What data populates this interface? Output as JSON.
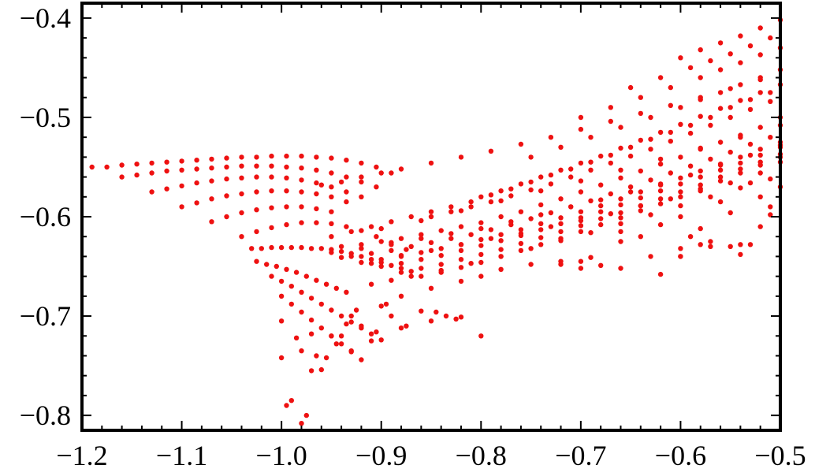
{
  "chart_data": {
    "type": "scatter",
    "title": "",
    "xlabel": "",
    "ylabel": "",
    "xlim": [
      -1.2,
      -0.5
    ],
    "ylim": [
      -0.815,
      -0.385
    ],
    "x_ticks": [
      -1.2,
      -1.1,
      -1.0,
      -0.9,
      -0.8,
      -0.7,
      -0.6,
      -0.5
    ],
    "y_ticks": [
      -0.8,
      -0.7,
      -0.6,
      -0.5,
      -0.4
    ],
    "x_tick_labels": [
      "−1.2",
      "−1.1",
      "−1.0",
      "−0.9",
      "−0.8",
      "−0.7",
      "−0.6",
      "−0.5"
    ],
    "y_tick_labels": [
      "−0.8",
      "−0.7",
      "−0.6",
      "−0.5",
      "−0.4"
    ],
    "grid": false,
    "frame": true,
    "marker_color": "#ee1111",
    "series": [
      {
        "x": [
          -1.19,
          -1.175,
          -1.16,
          -1.145,
          -1.13,
          -1.115,
          -1.1,
          -1.085,
          -1.07,
          -1.055,
          -1.04,
          -1.025,
          -1.01,
          -0.995,
          -0.98,
          -0.965,
          -0.95,
          -0.935,
          -0.92,
          -0.905,
          -0.89,
          -1.16,
          -1.145,
          -1.13,
          -1.115,
          -1.1,
          -1.085,
          -1.07,
          -1.055,
          -1.04,
          -1.025,
          -1.01,
          -0.995,
          -0.98,
          -0.965,
          -0.95,
          -0.935,
          -0.92,
          -0.905,
          -1.13,
          -1.115,
          -1.1,
          -1.085,
          -1.07,
          -1.055,
          -1.04,
          -1.025,
          -1.01,
          -0.995,
          -0.98,
          -0.965,
          -0.95,
          -0.935,
          -0.92,
          -1.1,
          -1.085,
          -1.07,
          -1.055,
          -1.04,
          -1.025,
          -1.01,
          -0.995,
          -0.98,
          -0.965,
          -0.95,
          -0.935,
          -1.07,
          -1.055,
          -1.04,
          -1.025,
          -1.01,
          -0.995,
          -0.98,
          -0.965,
          -0.95,
          -1.04,
          -1.025,
          -1.01,
          -0.995,
          -0.98,
          -0.965,
          -0.95,
          -0.935,
          -0.92,
          -0.905,
          -0.89,
          -0.875,
          -1.03,
          -1.02,
          -1.01,
          -1.0,
          -0.99,
          -0.98,
          -0.97,
          -0.96,
          -0.95,
          -0.94,
          -0.93,
          -0.92,
          -0.91,
          -0.9,
          -0.89,
          -0.88,
          -0.87,
          -1.025,
          -1.015,
          -1.005,
          -0.995,
          -0.985,
          -0.975,
          -0.965,
          -0.955,
          -0.945,
          -0.935,
          -1.01,
          -1.0,
          -0.99,
          -0.98,
          -0.97,
          -0.96,
          -0.95,
          -0.94,
          -0.93,
          -0.92,
          -0.91,
          -0.9,
          -1.0,
          -0.99,
          -0.98,
          -0.97,
          -0.96,
          -0.95,
          -0.94,
          -0.93,
          -0.92,
          -1.0,
          -0.98,
          -0.97,
          -0.95,
          -0.93,
          -0.9,
          -0.88,
          -0.85,
          -0.82,
          -0.8,
          -0.78,
          -0.75,
          -0.72,
          -0.7,
          -0.68,
          -0.66,
          -0.63,
          -0.6,
          -0.58,
          -0.95,
          -0.93,
          -0.91,
          -0.89,
          -0.87,
          -0.85,
          -0.83,
          -0.81,
          -0.79,
          -0.77,
          -0.75,
          -0.73,
          -0.71,
          -0.69,
          -0.67,
          -0.65,
          -0.63,
          -0.61,
          -0.59,
          -0.57,
          -0.55,
          -0.53,
          -0.51,
          -0.94,
          -0.92,
          -0.9,
          -0.88,
          -0.86,
          -0.84,
          -0.82,
          -0.8,
          -0.78,
          -0.76,
          -0.74,
          -0.72,
          -0.7,
          -0.68,
          -0.66,
          -0.64,
          -0.62,
          -0.6,
          -0.58,
          -0.56,
          -0.54,
          -0.52,
          -0.5,
          -0.93,
          -0.91,
          -0.89,
          -0.87,
          -0.85,
          -0.83,
          -0.81,
          -0.79,
          -0.77,
          -0.75,
          -0.73,
          -0.71,
          -0.69,
          -0.67,
          -0.65,
          -0.63,
          -0.61,
          -0.59,
          -0.57,
          -0.55,
          -0.53,
          -0.51,
          -0.92,
          -0.9,
          -0.88,
          -0.86,
          -0.84,
          -0.82,
          -0.8,
          -0.78,
          -0.76,
          -0.74,
          -0.72,
          -0.7,
          -0.68,
          -0.66,
          -0.64,
          -0.62,
          -0.6,
          -0.58,
          -0.56,
          -0.54,
          -0.52,
          -0.5,
          -0.9,
          -0.88,
          -0.86,
          -0.84,
          -0.82,
          -0.8,
          -0.78,
          -0.76,
          -0.74,
          -0.72,
          -0.7,
          -0.68,
          -0.66,
          -0.64,
          -0.62,
          -0.6,
          -0.58,
          -0.56,
          -0.54,
          -0.52,
          -0.5,
          -0.88,
          -0.86,
          -0.84,
          -0.82,
          -0.8,
          -0.78,
          -0.76,
          -0.74,
          -0.72,
          -0.7,
          -0.68,
          -0.66,
          -0.64,
          -0.62,
          -0.6,
          -0.58,
          -0.56,
          -0.54,
          -0.52,
          -0.5,
          -0.86,
          -0.84,
          -0.82,
          -0.8,
          -0.78,
          -0.76,
          -0.74,
          -0.72,
          -0.7,
          -0.68,
          -0.66,
          -0.64,
          -0.62,
          -0.6,
          -0.58,
          -0.56,
          -0.54,
          -0.52,
          -0.5,
          -0.85,
          -0.83,
          -0.81,
          -0.79,
          -0.77,
          -0.75,
          -0.73,
          -0.71,
          -0.69,
          -0.67,
          -0.65,
          -0.63,
          -0.61,
          -0.59,
          -0.57,
          -0.55,
          -0.53,
          -0.51,
          -0.8,
          -0.78,
          -0.76,
          -0.74,
          -0.72,
          -0.7,
          -0.68,
          -0.66,
          -0.64,
          -0.62,
          -0.6,
          -0.58,
          -0.56,
          -0.54,
          -0.52,
          -0.5,
          -0.75,
          -0.72,
          -0.69,
          -0.66,
          -0.63,
          -0.6,
          -0.58,
          -0.56,
          -0.54,
          -0.52,
          -0.5,
          -0.7,
          -0.67,
          -0.64,
          -0.61,
          -0.58,
          -0.56,
          -0.54,
          -0.52,
          -0.5,
          -0.65,
          -0.62,
          -0.59,
          -0.57,
          -0.55,
          -0.53,
          -0.51,
          -0.6,
          -0.58,
          -0.56,
          -0.54,
          -0.52,
          -0.5,
          -0.96,
          -0.94,
          -0.92,
          -0.9,
          -0.88,
          -0.85,
          -0.82,
          -0.79,
          -0.76,
          -0.73,
          -0.7,
          -0.67,
          -0.64,
          -0.61,
          -0.58,
          -0.55,
          -0.52,
          -0.91,
          -0.89,
          -0.87,
          -0.84,
          -0.81,
          -0.78,
          -0.75,
          -0.72,
          -0.69,
          -0.66,
          -0.63,
          -0.6,
          -0.57,
          -0.54,
          -0.51,
          -0.95,
          -0.94,
          -0.92,
          -0.91,
          -0.89,
          -0.88,
          -0.86,
          -0.85,
          -0.83,
          -0.82,
          -0.8,
          -0.79,
          -0.77,
          -0.76,
          -0.74,
          -0.73,
          -0.71,
          -0.7,
          -0.68,
          -0.67,
          -0.65,
          -0.64,
          -0.62,
          -0.61,
          -0.59,
          -0.58,
          -0.56,
          -0.55,
          -0.53,
          -0.52,
          -0.5,
          -0.9,
          -0.86,
          -0.82,
          -0.78,
          -0.74,
          -0.7,
          -0.66,
          -0.62,
          -0.58,
          -0.54,
          -0.5,
          -0.6,
          -0.58,
          -0.56,
          -0.55,
          -0.53,
          -0.52,
          -0.51,
          -0.5,
          -0.57,
          -0.54,
          -0.53,
          -0.51,
          -0.5,
          -0.52,
          -0.55,
          -0.6,
          -0.59,
          -0.62,
          -0.64,
          -0.66,
          -0.995,
          -0.99,
          -0.98,
          -0.975,
          -0.96,
          -0.955,
          -0.94,
          -0.93,
          -0.92,
          -0.91,
          -0.89,
          -0.88,
          -0.86,
          -0.85,
          -0.82,
          -0.8,
          -0.72,
          -0.7,
          -0.69,
          -0.66,
          -0.62,
          -0.6,
          -0.57,
          -0.54,
          -1.0,
          -0.985,
          -0.97,
          -0.965,
          -0.945,
          -0.935,
          -0.925,
          -0.905,
          -0.895,
          -0.875,
          -0.845,
          -0.835,
          -0.825
        ],
        "y": [
          -0.55,
          -0.55,
          -0.548,
          -0.547,
          -0.546,
          -0.545,
          -0.544,
          -0.543,
          -0.542,
          -0.541,
          -0.54,
          -0.54,
          -0.539,
          -0.539,
          -0.539,
          -0.54,
          -0.541,
          -0.543,
          -0.546,
          -0.55,
          -0.556,
          -0.56,
          -0.558,
          -0.556,
          -0.554,
          -0.553,
          -0.552,
          -0.551,
          -0.55,
          -0.549,
          -0.549,
          -0.549,
          -0.55,
          -0.551,
          -0.553,
          -0.556,
          -0.56,
          -0.565,
          -0.57,
          -0.575,
          -0.572,
          -0.569,
          -0.566,
          -0.564,
          -0.562,
          -0.561,
          -0.56,
          -0.56,
          -0.561,
          -0.563,
          -0.566,
          -0.57,
          -0.575,
          -0.58,
          -0.59,
          -0.586,
          -0.582,
          -0.579,
          -0.577,
          -0.575,
          -0.574,
          -0.574,
          -0.575,
          -0.577,
          -0.58,
          -0.585,
          -0.605,
          -0.6,
          -0.596,
          -0.593,
          -0.591,
          -0.59,
          -0.59,
          -0.592,
          -0.595,
          -0.62,
          -0.615,
          -0.611,
          -0.608,
          -0.606,
          -0.606,
          -0.607,
          -0.61,
          -0.614,
          -0.62,
          -0.626,
          -0.633,
          -0.632,
          -0.632,
          -0.631,
          -0.631,
          -0.631,
          -0.631,
          -0.632,
          -0.632,
          -0.633,
          -0.635,
          -0.637,
          -0.64,
          -0.643,
          -0.646,
          -0.649,
          -0.652,
          -0.655,
          -0.645,
          -0.648,
          -0.65,
          -0.653,
          -0.656,
          -0.66,
          -0.664,
          -0.668,
          -0.672,
          -0.676,
          -0.66,
          -0.665,
          -0.67,
          -0.676,
          -0.682,
          -0.688,
          -0.694,
          -0.7,
          -0.706,
          -0.712,
          -0.718,
          -0.724,
          -0.68,
          -0.688,
          -0.696,
          -0.704,
          -0.712,
          -0.72,
          -0.728,
          -0.736,
          -0.744,
          -0.742,
          -0.735,
          -0.755,
          -0.72,
          -0.7,
          -0.69,
          -0.68,
          -0.672,
          -0.665,
          -0.66,
          -0.653,
          -0.648,
          -0.645,
          -0.645,
          -0.649,
          -0.652,
          -0.64,
          -0.632,
          -0.628,
          -0.62,
          -0.615,
          -0.61,
          -0.605,
          -0.6,
          -0.595,
          -0.59,
          -0.585,
          -0.578,
          -0.572,
          -0.565,
          -0.558,
          -0.552,
          -0.545,
          -0.538,
          -0.53,
          -0.522,
          -0.515,
          -0.508,
          -0.5,
          -0.49,
          -0.482,
          -0.475,
          -0.63,
          -0.628,
          -0.625,
          -0.622,
          -0.618,
          -0.614,
          -0.61,
          -0.606,
          -0.6,
          -0.595,
          -0.588,
          -0.582,
          -0.575,
          -0.568,
          -0.561,
          -0.554,
          -0.547,
          -0.54,
          -0.532,
          -0.525,
          -0.518,
          -0.51,
          -0.5,
          -0.64,
          -0.637,
          -0.634,
          -0.63,
          -0.626,
          -0.622,
          -0.618,
          -0.613,
          -0.608,
          -0.602,
          -0.596,
          -0.59,
          -0.584,
          -0.577,
          -0.57,
          -0.563,
          -0.556,
          -0.549,
          -0.542,
          -0.535,
          -0.527,
          -0.52,
          -0.646,
          -0.643,
          -0.64,
          -0.636,
          -0.632,
          -0.628,
          -0.623,
          -0.618,
          -0.613,
          -0.607,
          -0.601,
          -0.595,
          -0.589,
          -0.582,
          -0.575,
          -0.568,
          -0.561,
          -0.554,
          -0.547,
          -0.54,
          -0.532,
          -0.525,
          -0.65,
          -0.647,
          -0.643,
          -0.639,
          -0.634,
          -0.629,
          -0.624,
          -0.619,
          -0.613,
          -0.607,
          -0.601,
          -0.595,
          -0.588,
          -0.581,
          -0.574,
          -0.567,
          -0.56,
          -0.553,
          -0.546,
          -0.538,
          -0.53,
          -0.656,
          -0.652,
          -0.648,
          -0.643,
          -0.638,
          -0.633,
          -0.627,
          -0.621,
          -0.615,
          -0.609,
          -0.602,
          -0.596,
          -0.589,
          -0.582,
          -0.575,
          -0.568,
          -0.56,
          -0.552,
          -0.545,
          -0.537,
          -0.66,
          -0.656,
          -0.651,
          -0.646,
          -0.64,
          -0.634,
          -0.628,
          -0.622,
          -0.615,
          -0.608,
          -0.601,
          -0.594,
          -0.587,
          -0.58,
          -0.572,
          -0.564,
          -0.556,
          -0.548,
          -0.54,
          -0.6,
          -0.595,
          -0.59,
          -0.585,
          -0.579,
          -0.573,
          -0.567,
          -0.56,
          -0.553,
          -0.546,
          -0.539,
          -0.532,
          -0.524,
          -0.516,
          -0.508,
          -0.5,
          -0.492,
          -0.484,
          -0.58,
          -0.574,
          -0.567,
          -0.56,
          -0.553,
          -0.546,
          -0.539,
          -0.531,
          -0.523,
          -0.515,
          -0.507,
          -0.499,
          -0.491,
          -0.483,
          -0.475,
          -0.467,
          -0.54,
          -0.53,
          -0.52,
          -0.51,
          -0.5,
          -0.49,
          -0.482,
          -0.475,
          -0.467,
          -0.46,
          -0.452,
          -0.5,
          -0.49,
          -0.48,
          -0.47,
          -0.46,
          -0.452,
          -0.445,
          -0.437,
          -0.43,
          -0.47,
          -0.46,
          -0.45,
          -0.443,
          -0.436,
          -0.428,
          -0.42,
          -0.44,
          -0.432,
          -0.425,
          -0.418,
          -0.41,
          -0.402,
          -0.568,
          -0.565,
          -0.56,
          -0.556,
          -0.552,
          -0.546,
          -0.54,
          -0.534,
          -0.527,
          -0.52,
          -0.512,
          -0.504,
          -0.496,
          -0.488,
          -0.48,
          -0.471,
          -0.462,
          -0.668,
          -0.664,
          -0.66,
          -0.654,
          -0.647,
          -0.64,
          -0.632,
          -0.624,
          -0.616,
          -0.607,
          -0.598,
          -0.589,
          -0.58,
          -0.571,
          -0.562,
          -0.636,
          -0.641,
          -0.632,
          -0.647,
          -0.628,
          -0.639,
          -0.622,
          -0.634,
          -0.617,
          -0.628,
          -0.612,
          -0.622,
          -0.605,
          -0.617,
          -0.598,
          -0.61,
          -0.59,
          -0.604,
          -0.583,
          -0.597,
          -0.575,
          -0.589,
          -0.567,
          -0.582,
          -0.558,
          -0.574,
          -0.548,
          -0.566,
          -0.538,
          -0.556,
          -0.528,
          -0.612,
          -0.604,
          -0.594,
          -0.584,
          -0.574,
          -0.564,
          -0.553,
          -0.542,
          -0.531,
          -0.52,
          -0.508,
          -0.6,
          -0.612,
          -0.585,
          -0.596,
          -0.566,
          -0.58,
          -0.59,
          -0.545,
          -0.625,
          -0.638,
          -0.628,
          -0.598,
          -0.57,
          -0.61,
          -0.63,
          -0.64,
          -0.62,
          -0.608,
          -0.62,
          -0.615,
          -0.79,
          -0.785,
          -0.808,
          -0.8,
          -0.754,
          -0.742,
          -0.72,
          -0.735,
          -0.71,
          -0.725,
          -0.7,
          -0.712,
          -0.695,
          -0.705,
          -0.701,
          -0.72,
          -0.648,
          -0.652,
          -0.641,
          -0.625,
          -0.658,
          -0.64,
          -0.63,
          -0.628,
          -0.705,
          -0.722,
          -0.718,
          -0.74,
          -0.728,
          -0.708,
          -0.694,
          -0.716,
          -0.688,
          -0.71,
          -0.696,
          -0.7,
          -0.703
        ]
      }
    ]
  }
}
